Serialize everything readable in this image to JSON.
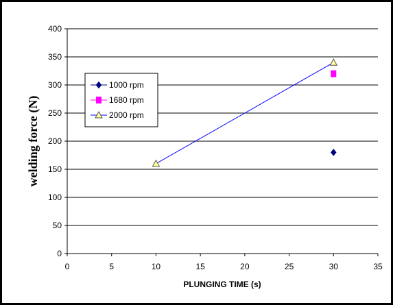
{
  "chart_data": {
    "type": "scatter",
    "title": "",
    "xlabel": "PLUNGING TIME (s)",
    "ylabel": "welding force (N)",
    "xlim": [
      0,
      35
    ],
    "ylim": [
      0,
      400
    ],
    "x_ticks": [
      0,
      5,
      10,
      15,
      20,
      25,
      30,
      35
    ],
    "y_ticks": [
      0,
      50,
      100,
      150,
      200,
      250,
      300,
      350,
      400
    ],
    "grid": "horizontal",
    "legend_position": "left",
    "series": [
      {
        "name": "1000 rpm",
        "marker": "diamond",
        "color": "#000080",
        "connected": false,
        "points": [
          {
            "x": 30,
            "y": 180
          }
        ]
      },
      {
        "name": "1680 rpm",
        "marker": "square",
        "color": "#ff00ff",
        "connected": false,
        "points": [
          {
            "x": 30,
            "y": 320
          }
        ]
      },
      {
        "name": "2000 rpm",
        "marker": "triangle",
        "color": "#ffff99",
        "line_color": "#0000ff",
        "connected": true,
        "points": [
          {
            "x": 10,
            "y": 160
          },
          {
            "x": 30,
            "y": 340
          }
        ]
      }
    ]
  }
}
